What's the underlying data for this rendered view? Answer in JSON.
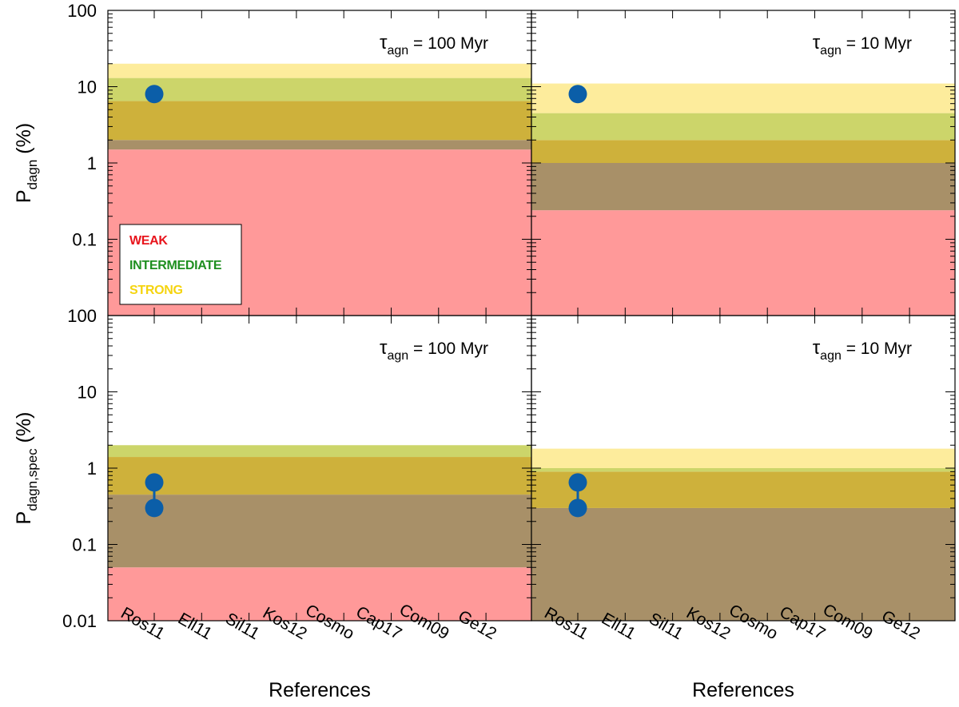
{
  "chart_data": {
    "type": "band-plot",
    "y_scale": "log",
    "categories": [
      "Ros11",
      "Ell11",
      "Sil11",
      "Kos12",
      "Cosmo",
      "Cap17",
      "Com09",
      "Ge12"
    ],
    "x_axis_title": "References",
    "legend": [
      {
        "label": "WEAK",
        "color": "#e8141c"
      },
      {
        "label": "INTERMEDIATE",
        "color": "#1f8f20"
      },
      {
        "label": "STRONG",
        "color": "#f5d40f"
      }
    ],
    "band_colors": {
      "weak": "#ff9999",
      "intermediate_over_weak": "#a89068",
      "strong_over_intermediate": "#ceb13b",
      "intermediate": "#ccd56a",
      "strong": "#fdec9c"
    },
    "marker_color": "#0b5ea8",
    "panels": [
      {
        "id": "top-left",
        "row": 0,
        "col": 0,
        "label": "τagn = 100 Myr",
        "label_tau": "τ",
        "label_sub": "agn",
        "label_rest": " = 100 Myr",
        "ylabel_main": "P",
        "ylabel_sub": "dagn",
        "ylabel_rest": " (%)",
        "ylim": [
          0.01,
          100
        ],
        "ytick_labels": [
          "0.1",
          "1",
          "10",
          "100"
        ],
        "ytick_values": [
          0.1,
          1,
          10,
          100
        ],
        "show_legend": true,
        "bands": [
          {
            "lo": 0.01,
            "hi": 1.5,
            "fill": "weak"
          },
          {
            "lo": 1.5,
            "hi": 2.0,
            "fill": "intermediate_over_weak"
          },
          {
            "lo": 2.0,
            "hi": 6.5,
            "fill": "strong_over_intermediate"
          },
          {
            "lo": 6.5,
            "hi": 13,
            "fill": "intermediate"
          },
          {
            "lo": 13,
            "hi": 20,
            "fill": "strong"
          }
        ],
        "points": [
          {
            "category": "Ros11",
            "values": [
              8
            ]
          }
        ]
      },
      {
        "id": "top-right",
        "row": 0,
        "col": 1,
        "label": "τagn = 10 Myr",
        "label_tau": "τ",
        "label_sub": "agn",
        "label_rest": " = 10 Myr",
        "ylim": [
          0.01,
          100
        ],
        "show_legend": false,
        "bands": [
          {
            "lo": 0.01,
            "hi": 0.24,
            "fill": "weak"
          },
          {
            "lo": 0.24,
            "hi": 1.0,
            "fill": "intermediate_over_weak"
          },
          {
            "lo": 1.0,
            "hi": 2.0,
            "fill": "strong_over_intermediate"
          },
          {
            "lo": 2.0,
            "hi": 4.5,
            "fill": "intermediate"
          },
          {
            "lo": 4.5,
            "hi": 11,
            "fill": "strong"
          }
        ],
        "points": [
          {
            "category": "Ros11",
            "values": [
              8
            ]
          }
        ]
      },
      {
        "id": "bottom-left",
        "row": 1,
        "col": 0,
        "label": "τagn = 100 Myr",
        "label_tau": "τ",
        "label_sub": "agn",
        "label_rest": " = 100 Myr",
        "ylabel_main": "P",
        "ylabel_sub": "dagn,spec",
        "ylabel_rest": " (%)",
        "ylim": [
          0.01,
          100
        ],
        "ytick_labels": [
          "0.01",
          "0.1",
          "1",
          "10",
          "100"
        ],
        "ytick_values": [
          0.01,
          0.1,
          1,
          10,
          100
        ],
        "show_legend": false,
        "bands": [
          {
            "lo": 0.01,
            "hi": 0.05,
            "fill": "weak"
          },
          {
            "lo": 0.05,
            "hi": 0.45,
            "fill": "intermediate_over_weak"
          },
          {
            "lo": 0.45,
            "hi": 1.4,
            "fill": "strong_over_intermediate"
          },
          {
            "lo": 1.4,
            "hi": 2.0,
            "fill": "intermediate"
          }
        ],
        "points": [
          {
            "category": "Ros11",
            "values": [
              0.3,
              0.65
            ]
          }
        ]
      },
      {
        "id": "bottom-right",
        "row": 1,
        "col": 1,
        "label": "τagn = 10 Myr",
        "label_tau": "τ",
        "label_sub": "agn",
        "label_rest": " = 10 Myr",
        "ylim": [
          0.01,
          100
        ],
        "show_legend": false,
        "bands": [
          {
            "lo": 0.01,
            "hi": 0.3,
            "fill": "intermediate_over_weak"
          },
          {
            "lo": 0.3,
            "hi": 0.9,
            "fill": "strong_over_intermediate"
          },
          {
            "lo": 0.9,
            "hi": 1.0,
            "fill": "intermediate"
          },
          {
            "lo": 1.0,
            "hi": 1.8,
            "fill": "strong"
          }
        ],
        "points": [
          {
            "category": "Ros11",
            "values": [
              0.3,
              0.65
            ]
          }
        ]
      }
    ]
  }
}
